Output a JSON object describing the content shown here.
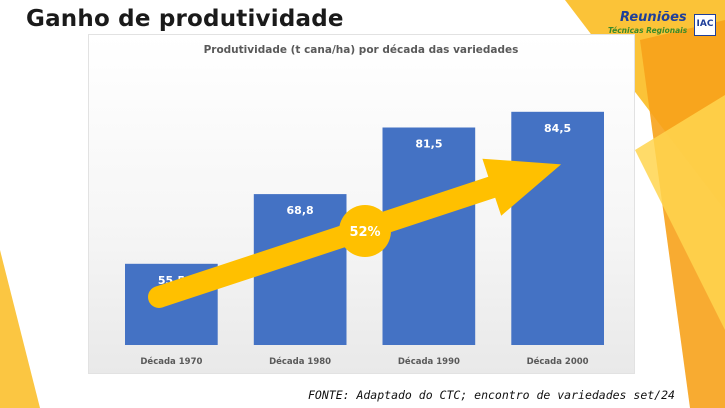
{
  "slide": {
    "title": "Ganho de produtividade",
    "source": "FONTE: Adaptado do CTC; encontro de variedades set/24"
  },
  "logo": {
    "line1": "Reuniões",
    "line2": "Técnicas Regionais",
    "badge": "IAC"
  },
  "chart_data": {
    "type": "bar",
    "title": "Produtividade (t cana/ha) por década das variedades",
    "xlabel": "",
    "ylabel": "",
    "categories": [
      "Década 1970",
      "Década 1980",
      "Década 1990",
      "Década 2000"
    ],
    "values": [
      55.5,
      68.8,
      81.5,
      84.5
    ],
    "value_labels": [
      "55,5",
      "68,8",
      "81,5",
      "84,5"
    ],
    "ylim": [
      40,
      90
    ],
    "grid": false,
    "legend": "none",
    "bar_color": "#4472c4",
    "annotation": {
      "text": "52%",
      "arrow_color": "#ffc000"
    }
  },
  "colors": {
    "accent_yellow": "#ffc000",
    "accent_orange": "#f7a21b"
  }
}
